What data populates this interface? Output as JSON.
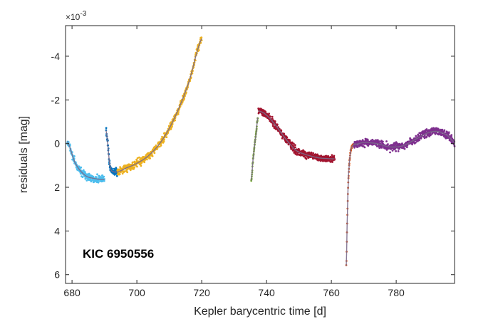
{
  "chart_data": {
    "type": "scatter",
    "title": "",
    "xlabel": "Kepler barycentric time  [d]",
    "ylabel": "residuals  [mag]",
    "y_scale_label": "×10",
    "y_scale_exponent": "-3",
    "annotation": "KIC 6950556",
    "xlim": [
      678,
      798
    ],
    "ylim": [
      -5.4,
      6.4
    ],
    "y_reversed": true,
    "x_ticks": [
      680,
      700,
      720,
      740,
      760,
      780
    ],
    "y_ticks": [
      -4,
      -2,
      0,
      2,
      4,
      6
    ],
    "grid": false,
    "fit_color": "#7a6a8a",
    "series": [
      {
        "color": "#4dbeee",
        "x": [
          678.5,
          681,
          684,
          687,
          690
        ],
        "y": [
          -0.1,
          0.9,
          1.45,
          1.6,
          1.65
        ]
      },
      {
        "color": "#0072bd",
        "x": [
          690.5,
          691,
          691.5,
          692,
          693,
          694
        ],
        "y": [
          -0.6,
          0.0,
          0.8,
          1.2,
          1.3,
          1.3
        ]
      },
      {
        "color": "#edb120",
        "x": [
          694,
          697,
          700,
          704,
          708,
          712,
          716,
          720
        ],
        "y": [
          1.3,
          1.1,
          0.9,
          0.5,
          -0.2,
          -1.3,
          -2.8,
          -4.8
        ]
      },
      {
        "color": "#77ac30",
        "x": [
          735.3,
          735.8,
          736.3,
          736.8,
          737.3
        ],
        "y": [
          1.7,
          0.8,
          0.1,
          -0.5,
          -1.2
        ]
      },
      {
        "color": "#a2142f",
        "x": [
          737.5,
          740,
          743,
          746,
          749,
          752,
          756,
          761
        ],
        "y": [
          -1.5,
          -1.3,
          -0.8,
          -0.2,
          0.3,
          0.5,
          0.65,
          0.7
        ]
      },
      {
        "color": "#d95319",
        "x": [
          764.6,
          764.9,
          765.2,
          765.6,
          766.0,
          766.5,
          767.5
        ],
        "y": [
          5.6,
          3.5,
          1.8,
          0.8,
          0.3,
          0.1,
          0.0
        ]
      },
      {
        "color": "#7e2f8e",
        "x": [
          767,
          770,
          774,
          778,
          782,
          786,
          790,
          793,
          796,
          798
        ],
        "y": [
          0.05,
          -0.05,
          0.0,
          0.15,
          0.1,
          -0.2,
          -0.5,
          -0.55,
          -0.35,
          -0.05
        ]
      }
    ]
  }
}
